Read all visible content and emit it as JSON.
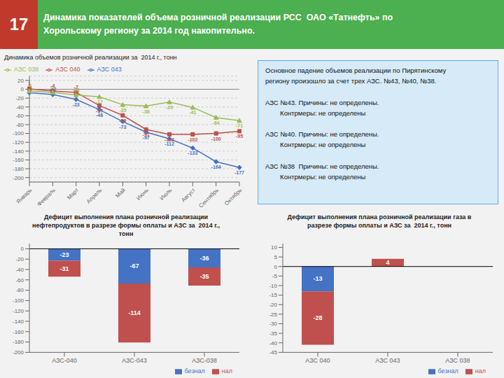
{
  "title": "Динамика показателей объема розничной реализации РСС  ОАО «Татнефть» по\nХорольскому региону за 2014 год накопительно.",
  "annotations": [
    "17"
  ],
  "chart_data": [
    {
      "type": "line",
      "title": "Динамика объемов розничной реализации за  2014 г., тонн",
      "categories": [
        "Январь",
        "Февраль",
        "Март",
        "Апрель",
        "Май",
        "Июнь",
        "Июль",
        "Август",
        "Сентябрь",
        "Октябрь"
      ],
      "series": [
        {
          "name": "АЗС 043",
          "color": "#4472C4",
          "marker": "diamond",
          "values": [
            -8,
            -12,
            -23,
            -46,
            -73,
            -97,
            -112,
            -133,
            -164,
            -177
          ]
        },
        {
          "name": "АЗС 040",
          "color": "#C0504D",
          "marker": "square",
          "values": [
            1,
            -4,
            -7,
            -37,
            -59,
            -91,
            -102,
            -102,
            -100,
            -95
          ]
        },
        {
          "name": "АЗС 038",
          "color": "#9BBB59",
          "marker": "triangle",
          "values": [
            -4,
            -7,
            -13,
            -17,
            -35,
            -38,
            -29,
            -41,
            -64,
            -71
          ]
        }
      ],
      "ylim": [
        -210,
        30
      ],
      "yticks": [
        -200,
        -180,
        -160,
        -140,
        -120,
        -100,
        -80,
        -60,
        -40,
        -20,
        0,
        20
      ],
      "grid": true,
      "legend": "upper left",
      "data_labels": true
    },
    {
      "type": "text",
      "annotations": [
        "Основное падение объемов реализации по Пирятинскому\nрегиону произошло за счет трех АЗС. №43, №40, №38.\n\nАЗС №43. Причины: не определены.\n        Контрмеры: не определены\n\nАЗС №40. Причины: не определены.\n        Контрмеры: не определены\n\nАЗС №38  Причины: не определены.\n        Контрмеры: не определены"
      ]
    },
    {
      "type": "bar",
      "stacked": true,
      "title": "Дефицит выполнения плана розничной реализации\nнефтепродуктов в разрезе формы оплаты и АЗС за  2014 г.,\nтонн",
      "categories": [
        "АЗС-040",
        "АЗС-043",
        "АЗС-038"
      ],
      "series": [
        {
          "name": "безнал",
          "color": "#4472C4",
          "values": [
            -23,
            -67,
            -36
          ]
        },
        {
          "name": "нал",
          "color": "#C0504D",
          "values": [
            -31,
            -114,
            -35
          ]
        }
      ],
      "ylim": [
        -200,
        10
      ],
      "yticks": [
        0,
        -20,
        -40,
        -60,
        -80,
        -100,
        -120,
        -140,
        -160,
        -180,
        -200
      ],
      "grid": false,
      "legend": "lower right",
      "data_labels": true
    },
    {
      "type": "bar",
      "stacked": true,
      "title": "Дефицит выполнения плана розничной реализации газа в\nразрезе формы оплаты и АЗС за  2014 г., тонн",
      "categories": [
        "АЗС 040",
        "АЗС 043",
        "АЗС 038"
      ],
      "series": [
        {
          "name": "безнал",
          "color": "#4472C4",
          "values": [
            -13,
            0,
            0
          ],
          "value_labels": [
            "-13",
            null,
            null
          ]
        },
        {
          "name": "нал",
          "color": "#C0504D",
          "values": [
            -28,
            4,
            0
          ],
          "value_labels": [
            "-28",
            "4",
            null
          ]
        }
      ],
      "ylim": [
        -45,
        12
      ],
      "yticks": [
        10,
        5,
        0,
        -5,
        -10,
        -15,
        -20,
        -25,
        -30,
        -35,
        -40,
        -45
      ],
      "grid": false,
      "legend": "lower right",
      "data_labels": true
    }
  ]
}
